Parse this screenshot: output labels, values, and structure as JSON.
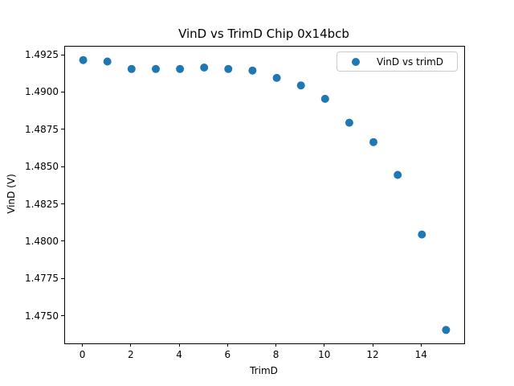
{
  "chart_data": {
    "type": "scatter",
    "title": "VinD vs TrimD Chip 0x14bcb",
    "xlabel": "TrimD",
    "ylabel": "VinD (V)",
    "legend": {
      "label": "VinD vs trimD",
      "position": "upper right",
      "marker": "circle-icon"
    },
    "marker_color": "#1f77b4",
    "background_color": "#ffffff",
    "grid": false,
    "x": [
      0,
      1,
      2,
      3,
      4,
      5,
      6,
      7,
      8,
      9,
      10,
      11,
      12,
      13,
      14,
      15
    ],
    "y": [
      1.4922,
      1.4921,
      1.4916,
      1.4916,
      1.4916,
      1.4917,
      1.4916,
      1.4915,
      1.491,
      1.4905,
      1.4896,
      1.488,
      1.4867,
      1.4845,
      1.4805,
      1.4741
    ],
    "series_name": "VinD vs trimD",
    "xlim": [
      -0.75,
      15.75
    ],
    "ylim": [
      1.4732,
      1.4931
    ],
    "xticks": [
      0,
      2,
      4,
      6,
      8,
      10,
      12,
      14
    ],
    "xtick_labels": [
      "0",
      "2",
      "4",
      "6",
      "8",
      "10",
      "12",
      "14"
    ],
    "yticks": [
      1.4925,
      1.49,
      1.4875,
      1.485,
      1.4825,
      1.48,
      1.4775,
      1.475
    ],
    "ytick_labels": [
      "1.4925",
      "1.4900",
      "1.4875",
      "1.4850",
      "1.4825",
      "1.4800",
      "1.4775",
      "1.4750"
    ]
  }
}
